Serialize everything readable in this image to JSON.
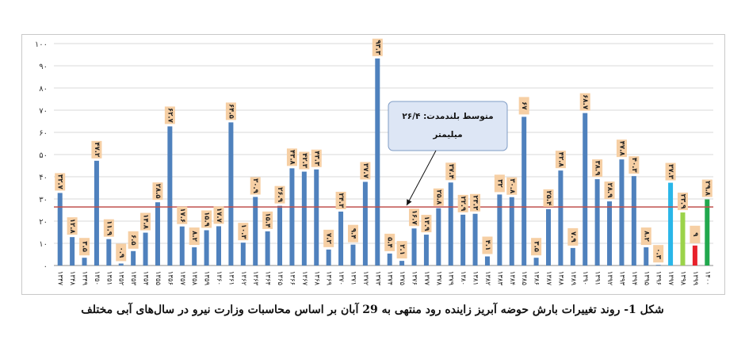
{
  "chart_data": {
    "type": "bar",
    "ylim": [
      0,
      100
    ],
    "yticks": [
      "۰",
      "۱۰",
      "۲۰",
      "۳۰",
      "۴۰",
      "۵۰",
      "۶۰",
      "۷۰",
      "۸۰",
      "۹۰",
      "۱۰۰"
    ],
    "categories": [
      "۱۳۴۷",
      "۱۳۴۸",
      "۱۳۴۹",
      "۱۳۵۰",
      "۱۳۵۱",
      "۱۳۵۲",
      "۱۳۵۳",
      "۱۳۵۴",
      "۱۳۵۵",
      "۱۳۵۶",
      "۱۳۵۷",
      "۱۳۵۸",
      "۱۳۵۹",
      "۱۳۶۰",
      "۱۳۶۱",
      "۱۳۶۲",
      "۱۳۶۳",
      "۱۳۶۴",
      "۱۳۶۵",
      "۱۳۶۶",
      "۱۳۶۷",
      "۱۳۶۸",
      "۱۳۶۹",
      "۱۳۷۰",
      "۱۳۷۱",
      "۱۳۷۲",
      "۱۳۷۳",
      "۱۳۷۴",
      "۱۳۷۵",
      "۱۳۷۶",
      "۱۳۷۷",
      "۱۳۷۸",
      "۱۳۷۹",
      "۱۳۸۰",
      "۱۳۸۱",
      "۱۳۸۲",
      "۱۳۸۳",
      "۱۳۸۴",
      "۱۳۸۵",
      "۱۳۸۶",
      "۱۳۸۷",
      "۱۳۸۸",
      "۱۳۸۹",
      "۱۳۹۰",
      "۱۳۹۱",
      "۱۳۹۲",
      "۱۳۹۳",
      "۱۳۹۴",
      "۱۳۹۵",
      "۱۳۹۶",
      "۱۳۹۷",
      "۱۳۹۸",
      "۱۳۹۹",
      "۱۴۰۰"
    ],
    "values": [
      32.7,
      12.8,
      3.5,
      47.2,
      11.9,
      0.9,
      6.5,
      14.8,
      28.5,
      62.7,
      17.6,
      8.2,
      15.9,
      17.7,
      64.5,
      10.3,
      30.9,
      15.4,
      26.9,
      43.8,
      42.3,
      43.3,
      7.2,
      24.3,
      9.4,
      37.7,
      93.3,
      5.4,
      2.1,
      16.7,
      13.9,
      25.8,
      37.4,
      22.9,
      23.3,
      4.1,
      32,
      30.8,
      67,
      3.5,
      25.4,
      42.8,
      7.9,
      68.7,
      38.9,
      28.9,
      47.8,
      40.3,
      8.2,
      0.3,
      37.3,
      23.9,
      9,
      29.8
    ],
    "value_labels": [
      "۳۲.۷",
      "۱۲.۸",
      "۳.۵",
      "۴۷.۲",
      "۱۱.۹",
      "۰.۹",
      "۶.۵",
      "۱۴.۸",
      "۲۸.۵",
      "۶۲.۷",
      "۱۷.۶",
      "۸.۲",
      "۱۵.۹",
      "۱۷.۷",
      "۶۴.۵",
      "۱۰.۳",
      "۳۰.۹",
      "۱۵.۴",
      "۲۶.۹",
      "۴۳.۸",
      "۴۲.۳",
      "۴۳.۳",
      "۷.۲",
      "۲۴.۳",
      "۹.۴",
      "۳۷.۷",
      "۹۳.۳",
      "۵.۴",
      "۲.۱",
      "۱۶.۷",
      "۱۳.۹",
      "۲۵.۸",
      "۳۷.۴",
      "۲۲.۹",
      "۲۳.۳",
      "۴.۱",
      "۳۲",
      "۳۰.۸",
      "۶۷",
      "۳.۵",
      "۲۵.۴",
      "۴۲.۸",
      "۷.۹",
      "۶۸.۷",
      "۳۸.۹",
      "۲۸.۹",
      "۴۷.۸",
      "۴۰.۳",
      "۸.۲",
      "۰.۳",
      "۳۷.۳",
      "۲۳.۹",
      "۹",
      "۲۹.۸"
    ],
    "bar_colors": [
      "#4f81bd",
      "#4f81bd",
      "#4f81bd",
      "#4f81bd",
      "#4f81bd",
      "#4f81bd",
      "#4f81bd",
      "#4f81bd",
      "#4f81bd",
      "#4f81bd",
      "#4f81bd",
      "#4f81bd",
      "#4f81bd",
      "#4f81bd",
      "#4f81bd",
      "#4f81bd",
      "#4f81bd",
      "#4f81bd",
      "#4f81bd",
      "#4f81bd",
      "#4f81bd",
      "#4f81bd",
      "#4f81bd",
      "#4f81bd",
      "#4f81bd",
      "#4f81bd",
      "#4f81bd",
      "#4f81bd",
      "#4f81bd",
      "#4f81bd",
      "#4f81bd",
      "#4f81bd",
      "#4f81bd",
      "#4f81bd",
      "#4f81bd",
      "#4f81bd",
      "#4f81bd",
      "#4f81bd",
      "#4f81bd",
      "#4f81bd",
      "#4f81bd",
      "#4f81bd",
      "#4f81bd",
      "#4f81bd",
      "#4f81bd",
      "#4f81bd",
      "#4f81bd",
      "#4f81bd",
      "#4f81bd",
      "#4f81bd",
      "#29b6e8",
      "#9bd34a",
      "#e8212b",
      "#21a84d"
    ],
    "reference_line": {
      "value": 26.4,
      "color": "#c0504d"
    },
    "annotation": {
      "line1": "متوسط بلندمدت: ۲۶/۴",
      "line2": "میلیمتر",
      "target_category": "۱۳۷۵"
    },
    "label_box_color": "#f6cfa4",
    "grid": true
  },
  "caption": "شکل 1- روند تغییرات بارش حوضه آبریز زاینده رود منتهی به 29 آبان بر اساس محاسبات وزارت نیرو در سال‌های آبی مختلف"
}
